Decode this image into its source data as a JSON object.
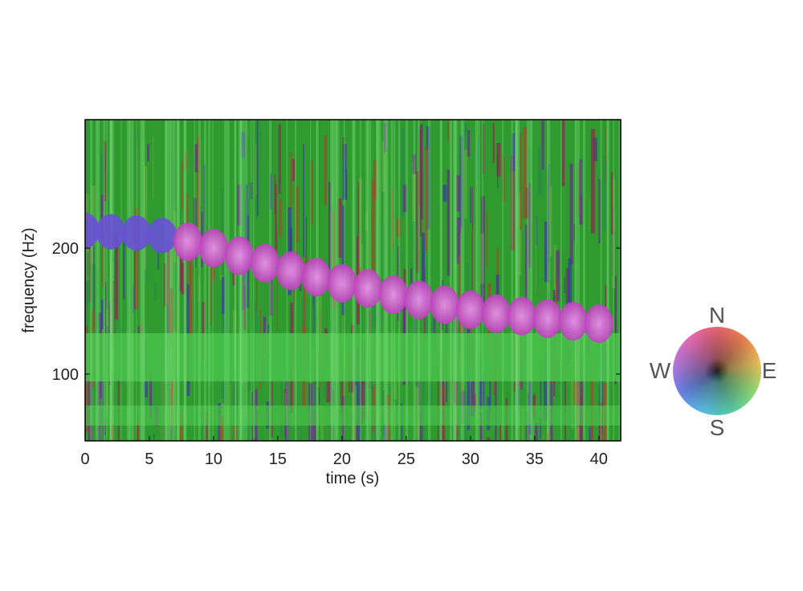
{
  "chart_data": {
    "type": "spectrogram",
    "xlabel": "time (s)",
    "ylabel": "frequency (Hz)",
    "xlim": [
      0,
      41.7
    ],
    "ylim": [
      47,
      302
    ],
    "xticks": [
      0,
      5,
      10,
      15,
      20,
      25,
      30,
      35,
      40
    ],
    "yticks": [
      100,
      200
    ],
    "x": [
      0,
      2,
      4,
      6,
      8,
      10,
      12,
      14,
      16,
      18,
      20,
      22,
      24,
      26,
      28,
      30,
      32,
      34,
      36,
      38,
      40
    ],
    "values": [
      214,
      213,
      212,
      210,
      205,
      200,
      194,
      188,
      182,
      177,
      172,
      168,
      163,
      159,
      155,
      151,
      148,
      146,
      144,
      142,
      140
    ],
    "compass": {
      "n": "N",
      "e": "E",
      "s": "S",
      "w": "W"
    }
  }
}
